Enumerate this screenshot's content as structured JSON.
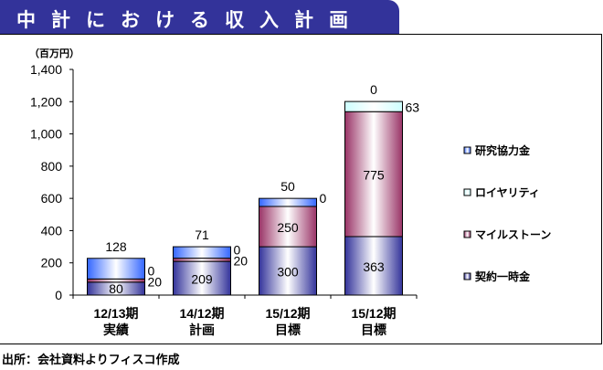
{
  "title": "中計における収入計画",
  "source": "出所：会社資料よりフィスコ作成",
  "chart_data": {
    "type": "bar",
    "stacked": true,
    "unit_label": "（百万円）",
    "categories": [
      [
        "12/13期",
        "実績"
      ],
      [
        "14/12期",
        "計画"
      ],
      [
        "15/12期",
        "目標"
      ],
      [
        "15/12期",
        "目標"
      ]
    ],
    "ylim": [
      0,
      1400
    ],
    "yticks": [
      "0",
      "200",
      "400",
      "600",
      "800",
      "1,000",
      "1,200",
      "1,400"
    ],
    "series": [
      {
        "name": "契約一時金",
        "values": [
          80,
          209,
          300,
          363
        ],
        "color": "#33339a"
      },
      {
        "name": "マイルストーン",
        "values": [
          20,
          20,
          250,
          775
        ],
        "color": "#993366"
      },
      {
        "name": "ロイヤリティ",
        "values": [
          0,
          0,
          0,
          63
        ],
        "color": "#ccffff"
      },
      {
        "name": "研究協力金",
        "values": [
          128,
          71,
          50,
          0
        ],
        "color": "#3366ff"
      }
    ],
    "legend_order": [
      "研究協力金",
      "ロイヤリティ",
      "マイルストーン",
      "契約一時金"
    ],
    "legend": "right"
  }
}
